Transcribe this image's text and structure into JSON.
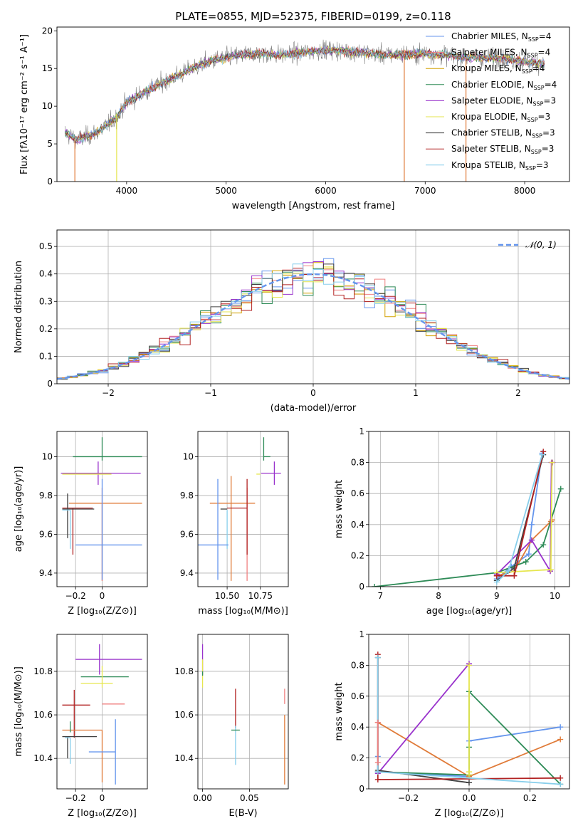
{
  "figure": {
    "title": "PLATE=0855, MJD=52375, FIBERID=0199, z=0.118"
  },
  "colors": {
    "Chabrier MILES": "#6495ed",
    "Salpeter MILES": "#f08080",
    "Kroupa MILES": "#d2a000",
    "Chabrier ELODIE": "#2e8b57",
    "Salpeter ELODIE": "#9932cc",
    "Kroupa ELODIE": "#e6e64d",
    "Chabrier STELIB": "#404040",
    "Salpeter STELIB": "#b22222",
    "Kroupa STELIB": "#87ceeb",
    "orange_line": "#e07b39",
    "gray_data": "#808080",
    "grid": "#b0b0b0"
  },
  "chart_data": [
    {
      "id": "spectrum",
      "type": "line",
      "title": "PLATE=0855, MJD=52375, FIBERID=0199, z=0.118",
      "xlabel": "wavelength [Angstrom, rest frame]",
      "ylabel": "Flux [fλ10⁻¹⁷ erg cm⁻² s⁻¹ A⁻¹]",
      "xlim": [
        3300,
        8450
      ],
      "ylim": [
        0,
        20.5
      ],
      "xticks": [
        4000,
        5000,
        6000,
        7000,
        8000
      ],
      "yticks": [
        0,
        5,
        10,
        15,
        20
      ],
      "grid": false,
      "legend": "upper right",
      "legend_entries": [
        {
          "label": "Chabrier MILES, N",
          "sub": "SSP",
          "tail": "=4",
          "color": "#6495ed"
        },
        {
          "label": "Salpeter MILES, N",
          "sub": "SSP",
          "tail": "=4",
          "color": "#f08080"
        },
        {
          "label": "Kroupa MILES, N",
          "sub": "SSP",
          "tail": "=4",
          "color": "#d2a000"
        },
        {
          "label": "Chabrier ELODIE, N",
          "sub": "SSP",
          "tail": "=4",
          "color": "#2e8b57"
        },
        {
          "label": "Salpeter ELODIE, N",
          "sub": "SSP",
          "tail": "=3",
          "color": "#9932cc"
        },
        {
          "label": "Kroupa ELODIE, N",
          "sub": "SSP",
          "tail": "=3",
          "color": "#e6e64d"
        },
        {
          "label": "Chabrier STELIB, N",
          "sub": "SSP",
          "tail": "=3",
          "color": "#404040"
        },
        {
          "label": "Salpeter STELIB, N",
          "sub": "SSP",
          "tail": "=3",
          "color": "#b22222"
        },
        {
          "label": "Kroupa STELIB, N",
          "sub": "SSP",
          "tail": "=3",
          "color": "#87ceeb"
        }
      ],
      "continuum": {
        "x": [
          3380,
          3500,
          3700,
          3900,
          4000,
          4200,
          4500,
          4800,
          5000,
          5300,
          5600,
          6000,
          6300,
          6600,
          7000,
          7400,
          7800,
          8200
        ],
        "y": [
          6.5,
          5.5,
          6.5,
          8.5,
          10.5,
          12.0,
          14.0,
          15.8,
          16.5,
          17.0,
          16.8,
          17.5,
          17.2,
          16.8,
          17.0,
          16.5,
          16.3,
          15.6
        ]
      },
      "vertical_spikes": [
        {
          "x": 6790,
          "y0": 0,
          "y1": 17.5,
          "color": "#e07b39"
        },
        {
          "x": 7410,
          "y0": 0,
          "y1": 16.5,
          "color": "#e07b39"
        },
        {
          "x": 3900,
          "y0": 0,
          "y1": 9.0,
          "color": "#e6e64d"
        },
        {
          "x": 3480,
          "y0": 0,
          "y1": 5.5,
          "color": "#e07b39"
        }
      ]
    },
    {
      "id": "residuals",
      "type": "line",
      "xlabel": "(data-model)/error",
      "ylabel": "Normed distribution",
      "xlim": [
        -2.5,
        2.5
      ],
      "ylim": [
        0,
        0.56
      ],
      "xticks": [
        -2,
        -1,
        0,
        1,
        2
      ],
      "yticks": [
        0.0,
        0.1,
        0.2,
        0.3,
        0.4,
        0.5
      ],
      "grid": true,
      "legend": "upper right",
      "legend_label": "𝒩(0, 1)",
      "normal_curve": {
        "mean": 0,
        "sigma": 1,
        "color": "#6495ed"
      },
      "bin_width": 0.1
    },
    {
      "id": "age_vs_Z",
      "type": "scatter",
      "xlabel": "Z [log₁₀(Z/Z⊙)]",
      "ylabel": "age  [log₁₀(age/yr)]",
      "xlim": [
        -0.34,
        0.34
      ],
      "ylim": [
        9.33,
        10.13
      ],
      "xticks": [
        -0.2,
        0.0
      ],
      "yticks": [
        9.4,
        9.6,
        9.8,
        10.0
      ],
      "grid": true,
      "points": [
        {
          "x": 0.0,
          "y": 10.0,
          "xerr": [
            0.22,
            0.3
          ],
          "yerr": [
            0.02,
            0.1
          ],
          "color": "#2e8b57"
        },
        {
          "x": -0.03,
          "y": 9.915,
          "xerr": [
            0.28,
            0.32
          ],
          "yerr": [
            0.06,
            0.06
          ],
          "color": "#9932cc"
        },
        {
          "x": -0.05,
          "y": 9.91,
          "xerr": [
            0.25,
            0.12
          ],
          "yerr": [
            0.0,
            0.0
          ],
          "color": "#e6e64d"
        },
        {
          "x": 0.0,
          "y": 9.76,
          "xerr": [
            0.25,
            0.3
          ],
          "yerr": [
            0.4,
            0.0
          ],
          "color": "#e07b39"
        },
        {
          "x": 0.0,
          "y": 9.76,
          "xerr": [
            0.0,
            0.0
          ],
          "yerr": [
            0.4,
            0.08
          ],
          "color": "#f08080"
        },
        {
          "x": -0.22,
          "y": 9.735,
          "xerr": [
            0.08,
            0.15
          ],
          "yerr": [
            0.24,
            0.0
          ],
          "color": "#b22222"
        },
        {
          "x": -0.26,
          "y": 9.73,
          "xerr": [
            0.04,
            0.2
          ],
          "yerr": [
            0.15,
            0.08
          ],
          "color": "#404040"
        },
        {
          "x": -0.24,
          "y": 9.725,
          "xerr": [
            0.06,
            0.0
          ],
          "yerr": [
            0.2,
            0.0
          ],
          "color": "#87ceeb"
        },
        {
          "x": 0.0,
          "y": 9.545,
          "xerr": [
            0.2,
            0.3
          ],
          "yerr": [
            0.18,
            0.34
          ],
          "color": "#6495ed"
        }
      ]
    },
    {
      "id": "age_vs_mass",
      "type": "scatter",
      "xlabel": "mass [log₁₀(M/M⊙)]",
      "ylabel": "",
      "xlim": [
        10.28,
        10.96
      ],
      "ylim": [
        9.33,
        10.13
      ],
      "xticks": [
        10.5,
        10.75
      ],
      "xtick_labels": [
        "10.50",
        "10.75"
      ],
      "yticks": [
        9.4,
        9.6,
        9.8,
        10.0
      ],
      "grid": true,
      "points": [
        {
          "x": 10.775,
          "y": 10.0,
          "xerr": [
            0.0,
            0.05
          ],
          "yerr": [
            0.02,
            0.1
          ],
          "color": "#2e8b57"
        },
        {
          "x": 10.855,
          "y": 9.915,
          "xerr": [
            0.1,
            0.05
          ],
          "yerr": [
            0.06,
            0.06
          ],
          "color": "#9932cc"
        },
        {
          "x": 10.75,
          "y": 9.91,
          "xerr": [
            0.03,
            0.0
          ],
          "yerr": [
            0.0,
            0.0
          ],
          "color": "#e6e64d"
        },
        {
          "x": 10.53,
          "y": 9.76,
          "xerr": [
            0.16,
            0.18
          ],
          "yerr": [
            0.4,
            0.14
          ],
          "color": "#e07b39"
        },
        {
          "x": 10.65,
          "y": 9.76,
          "xerr": [
            0.0,
            0.0
          ],
          "yerr": [
            0.4,
            0.08
          ],
          "color": "#f08080"
        },
        {
          "x": 10.65,
          "y": 9.735,
          "xerr": [
            0.15,
            0.0
          ],
          "yerr": [
            0.24,
            0.15
          ],
          "color": "#b22222"
        },
        {
          "x": 10.5,
          "y": 9.73,
          "xerr": [
            0.05,
            0.0
          ],
          "yerr": [
            0.0,
            0.0
          ],
          "color": "#404040"
        },
        {
          "x": 10.5,
          "y": 9.725,
          "xerr": [
            0.0,
            0.0
          ],
          "yerr": [
            0.2,
            0.0
          ],
          "color": "#87ceeb"
        },
        {
          "x": 10.43,
          "y": 9.545,
          "xerr": [
            0.15,
            0.08
          ],
          "yerr": [
            0.18,
            0.34
          ],
          "color": "#6495ed"
        }
      ]
    },
    {
      "id": "massweight_vs_age",
      "type": "line",
      "xlabel": "age  [log₁₀(age/yr)]",
      "ylabel": "mass weight",
      "xlim": [
        6.8,
        10.25
      ],
      "ylim": [
        0,
        1.0
      ],
      "xticks": [
        7,
        8,
        9,
        10
      ],
      "yticks": [
        0.0,
        0.2,
        0.4,
        0.6,
        0.8,
        1.0
      ],
      "grid": true,
      "series": [
        {
          "color": "#6495ed",
          "x": [
            9.0,
            9.25,
            9.55,
            9.6,
            9.78
          ],
          "y": [
            0.05,
            0.13,
            0.21,
            0.4,
            0.86
          ]
        },
        {
          "color": "#e07b39",
          "x": [
            9.0,
            9.3,
            9.6,
            9.93,
            9.95
          ],
          "y": [
            0.07,
            0.1,
            0.3,
            0.42,
            0.43
          ]
        },
        {
          "color": "#2e8b57",
          "x": [
            6.9,
            9.0,
            9.5,
            9.8,
            10.1
          ],
          "y": [
            0.0,
            0.09,
            0.16,
            0.27,
            0.63
          ]
        },
        {
          "color": "#9932cc",
          "x": [
            9.0,
            9.6,
            9.92,
            9.94,
            9.96
          ],
          "y": [
            0.08,
            0.3,
            0.1,
            0.8,
            0.8
          ]
        },
        {
          "color": "#e6e64d",
          "x": [
            9.0,
            9.93,
            9.95
          ],
          "y": [
            0.09,
            0.11,
            0.8
          ]
        },
        {
          "color": "#404040",
          "x": [
            9.0,
            9.3,
            9.8
          ],
          "y": [
            0.04,
            0.12,
            0.85
          ]
        },
        {
          "color": "#b22222",
          "x": [
            9.0,
            9.3,
            9.8
          ],
          "y": [
            0.07,
            0.07,
            0.87
          ]
        },
        {
          "color": "#87ceeb",
          "x": [
            9.0,
            9.2,
            9.78
          ],
          "y": [
            0.03,
            0.1,
            0.85
          ]
        }
      ]
    },
    {
      "id": "mass_vs_Z",
      "type": "scatter",
      "xlabel": "Z [log₁₀(Z/Z⊙)]",
      "ylabel": "mass [log₁₀(M/M⊙)]",
      "xlim": [
        -0.34,
        0.34
      ],
      "ylim": [
        10.26,
        10.97
      ],
      "xticks": [
        -0.2,
        0.0
      ],
      "yticks": [
        10.4,
        10.6,
        10.8
      ],
      "grid": true,
      "points": [
        {
          "x": -0.02,
          "y": 10.855,
          "xerr": [
            0.18,
            0.32
          ],
          "yerr": [
            0.07,
            0.07
          ],
          "color": "#9932cc"
        },
        {
          "x": 0.0,
          "y": 10.775,
          "xerr": [
            0.16,
            0.2
          ],
          "yerr": [
            0.0,
            0.0
          ],
          "color": "#2e8b57"
        },
        {
          "x": 0.0,
          "y": 10.775,
          "xerr": [
            0.0,
            0.0
          ],
          "yerr": [
            0.05,
            0.05
          ],
          "color": "#e6e64d"
        },
        {
          "x": 0.0,
          "y": 10.745,
          "xerr": [
            0.16,
            0.08
          ],
          "yerr": [
            0.0,
            0.0
          ],
          "color": "#e6e64d"
        },
        {
          "x": 0.0,
          "y": 10.65,
          "xerr": [
            0.0,
            0.17
          ],
          "yerr": [
            0.0,
            0.0
          ],
          "color": "#f08080"
        },
        {
          "x": -0.21,
          "y": 10.645,
          "xerr": [
            0.09,
            0.12
          ],
          "yerr": [
            0.15,
            0.07
          ],
          "color": "#b22222"
        },
        {
          "x": 0.0,
          "y": 10.53,
          "xerr": [
            0.3,
            0.0
          ],
          "yerr": [
            0.24,
            0.0
          ],
          "color": "#e07b39"
        },
        {
          "x": -0.26,
          "y": 10.5,
          "xerr": [
            0.04,
            0.22
          ],
          "yerr": [
            0.1,
            0.0
          ],
          "color": "#404040"
        },
        {
          "x": -0.24,
          "y": 10.495,
          "xerr": [
            0.04,
            0.0
          ],
          "yerr": [
            0.12,
            0.0
          ],
          "color": "#87ceeb"
        },
        {
          "x": -0.24,
          "y": 10.52,
          "xerr": [
            0.0,
            0.0
          ],
          "yerr": [
            0.0,
            0.05
          ],
          "color": "#2e8b57"
        },
        {
          "x": 0.1,
          "y": 10.43,
          "xerr": [
            0.2,
            0.0
          ],
          "yerr": [
            0.15,
            0.15
          ],
          "color": "#6495ed"
        }
      ]
    },
    {
      "id": "mass_vs_ebv",
      "type": "scatter",
      "xlabel": "E(B-V)",
      "ylabel": "",
      "xlim": [
        -0.005,
        0.0915
      ],
      "ylim": [
        10.26,
        10.97
      ],
      "xticks": [
        0.0,
        0.05
      ],
      "xtick_labels": [
        "0.00",
        "0.05"
      ],
      "yticks": [
        10.4,
        10.6,
        10.8
      ],
      "grid": true,
      "points": [
        {
          "x": 0.0,
          "y": 10.855,
          "yerr": [
            0.07,
            0.07
          ],
          "color": "#9932cc"
        },
        {
          "x": 0.0,
          "y": 10.775,
          "yerr": [
            0.05,
            0.08
          ],
          "color": "#e6e64d"
        },
        {
          "x": 0.0,
          "y": 10.8,
          "yerr": [
            0.02,
            0.0
          ],
          "color": "#2e8b57"
        },
        {
          "x": 0.0352,
          "y": 10.64,
          "yerr": [
            0.1,
            0.08
          ],
          "color": "#b22222"
        },
        {
          "x": 0.0352,
          "y": 10.5,
          "yerr": [
            0.13,
            0.05
          ],
          "color": "#87ceeb"
        },
        {
          "x": 0.0352,
          "y": 10.53,
          "yerr": [
            0.0,
            0.0
          ],
          "color": "#2e8b57"
        },
        {
          "x": 0.0876,
          "y": 10.65,
          "yerr": [
            0.0,
            0.07
          ],
          "color": "#f08080"
        },
        {
          "x": 0.0876,
          "y": 10.45,
          "yerr": [
            0.17,
            0.15
          ],
          "color": "#e07b39"
        }
      ]
    },
    {
      "id": "massweight_vs_Z",
      "type": "line",
      "xlabel": "Z [log₁₀(Z/Z⊙)]",
      "ylabel": "mass weight",
      "xlim": [
        -0.33,
        0.33
      ],
      "ylim": [
        0,
        1.0
      ],
      "xticks": [
        -0.2,
        0.0,
        0.2
      ],
      "xtick_labels": [
        "−0.2",
        "0.0",
        "0.2"
      ],
      "yticks": [
        0.0,
        0.2,
        0.4,
        0.6,
        0.8,
        1.0
      ],
      "grid": true,
      "series": [
        {
          "color": "#6495ed",
          "x": [
            -0.3,
            -0.3,
            0.0,
            0.0,
            0.3
          ],
          "y": [
            0.21,
            0.11,
            0.08,
            0.31,
            0.4
          ]
        },
        {
          "color": "#e07b39",
          "x": [
            -0.3,
            0.0,
            0.3
          ],
          "y": [
            0.43,
            0.08,
            0.32
          ]
        },
        {
          "color": "#2e8b57",
          "x": [
            -0.3,
            0.0,
            0.0,
            0.0,
            0.3
          ],
          "y": [
            0.11,
            0.09,
            0.27,
            0.63,
            0.03
          ]
        },
        {
          "color": "#9932cc",
          "x": [
            -0.3,
            0.0,
            0.0
          ],
          "y": [
            0.1,
            0.81,
            0.8
          ]
        },
        {
          "color": "#e6e64d",
          "x": [
            0.0,
            0.0,
            0.0
          ],
          "y": [
            0.09,
            0.8,
            0.11
          ]
        },
        {
          "color": "#404040",
          "x": [
            -0.3,
            -0.3,
            0.0
          ],
          "y": [
            0.85,
            0.12,
            0.04
          ]
        },
        {
          "color": "#b22222",
          "x": [
            -0.3,
            -0.3,
            0.3
          ],
          "y": [
            0.87,
            0.06,
            0.07
          ]
        },
        {
          "color": "#87ceeb",
          "x": [
            -0.3,
            -0.3,
            0.3
          ],
          "y": [
            0.85,
            0.11,
            0.03
          ]
        },
        {
          "color": "#f08080",
          "x": [
            -0.3,
            -0.3
          ],
          "y": [
            0.17,
            0.43
          ]
        }
      ]
    }
  ]
}
